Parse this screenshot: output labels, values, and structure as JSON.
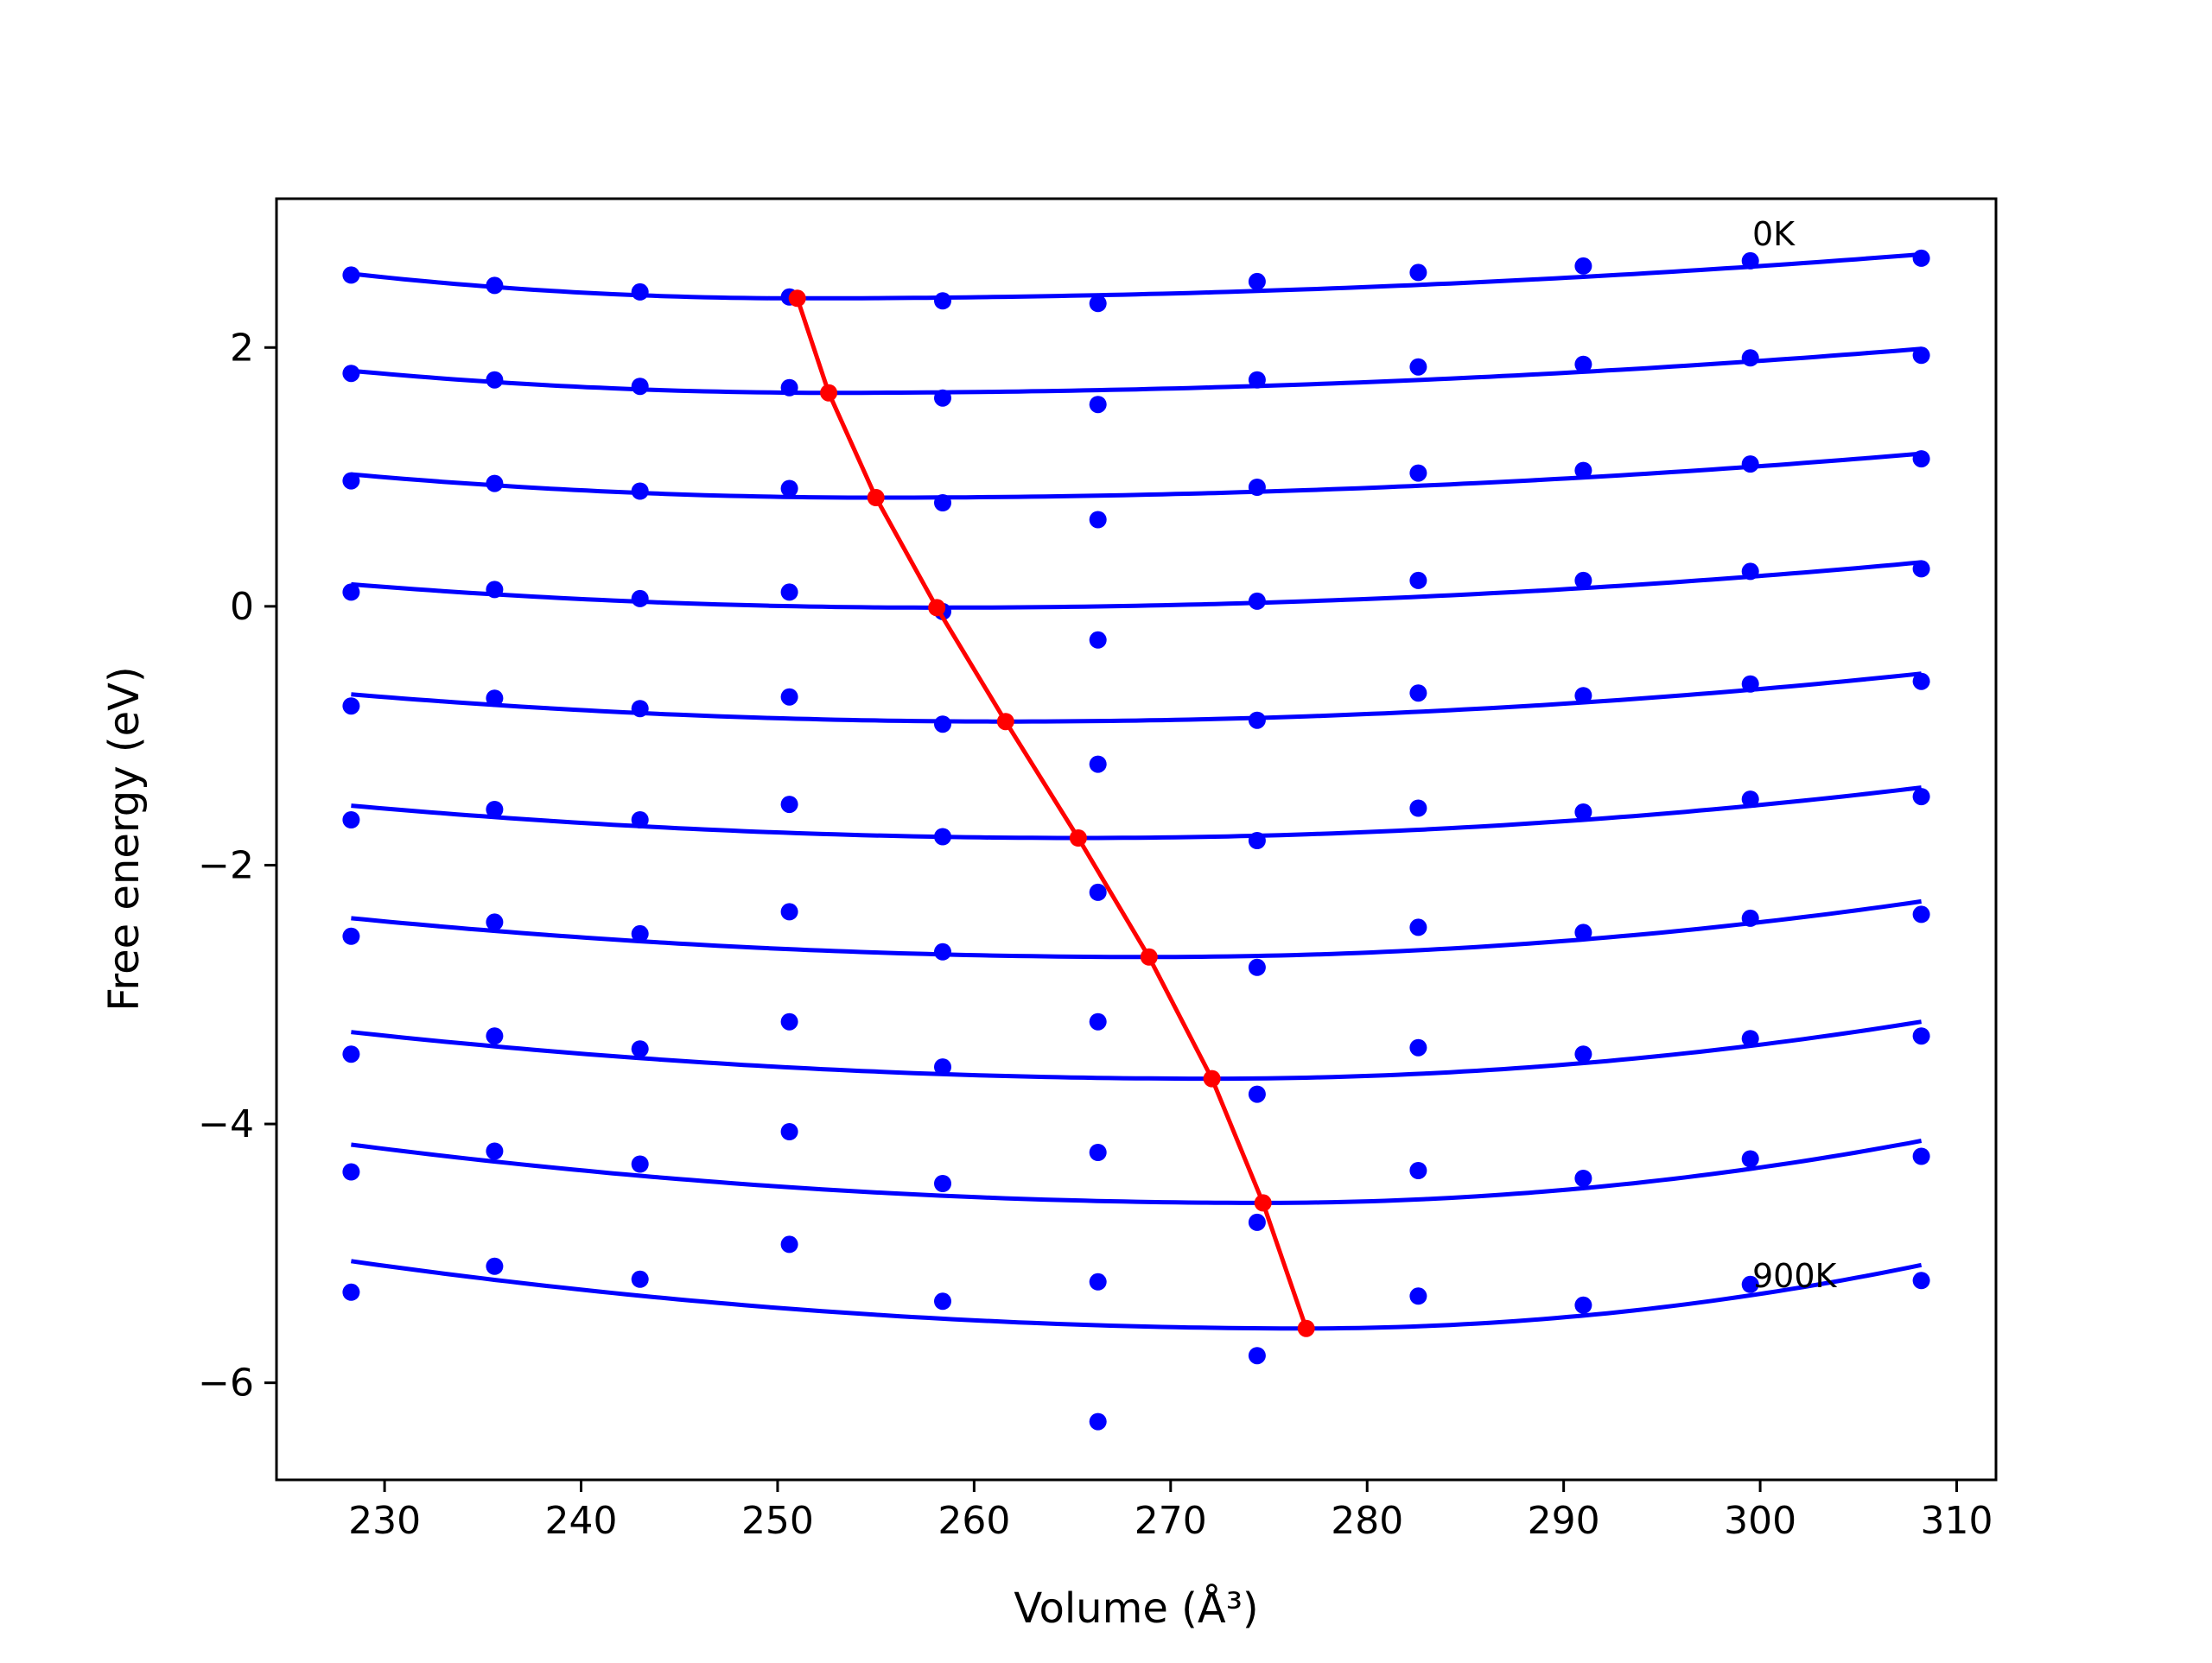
{
  "chart_data": {
    "type": "scatter",
    "xlabel": "Volume (Å³)",
    "ylabel": "Free energy (eV)",
    "xlim": [
      224.5,
      312
    ],
    "ylim": [
      -6.75,
      3.15
    ],
    "xticks": [
      230,
      240,
      250,
      260,
      270,
      280,
      290,
      300,
      310
    ],
    "yticks": [
      -6,
      -4,
      -2,
      0,
      2
    ],
    "ytick_labels": [
      "−6",
      "−4",
      "−2",
      "0",
      "2"
    ],
    "grid": false,
    "colors": {
      "points": "#0000ff",
      "fits": "#0000ff",
      "minima": "#ff0000",
      "axes": "#000000"
    },
    "x": [
      228.3,
      235.6,
      243.0,
      250.6,
      258.4,
      266.3,
      274.4,
      282.6,
      291.0,
      299.5,
      308.2
    ],
    "series": [
      {
        "values": [
          2.56,
          2.48,
          2.43,
          2.39,
          2.36,
          2.34,
          2.51,
          2.58,
          2.63,
          2.67,
          2.69
        ]
      },
      {
        "values": [
          1.8,
          1.75,
          1.7,
          1.69,
          1.61,
          1.56,
          1.75,
          1.85,
          1.87,
          1.92,
          1.94
        ]
      },
      {
        "values": [
          0.97,
          0.95,
          0.89,
          0.91,
          0.8,
          0.67,
          0.92,
          1.03,
          1.05,
          1.1,
          1.14
        ]
      },
      {
        "values": [
          0.11,
          0.13,
          0.06,
          0.11,
          -0.04,
          -0.26,
          0.04,
          0.2,
          0.2,
          0.27,
          0.29
        ]
      },
      {
        "values": [
          -0.77,
          -0.71,
          -0.79,
          -0.7,
          -0.91,
          -1.22,
          -0.88,
          -0.67,
          -0.69,
          -0.6,
          -0.58
        ]
      },
      {
        "values": [
          -1.65,
          -1.57,
          -1.65,
          -1.53,
          -1.78,
          -2.21,
          -1.81,
          -1.56,
          -1.59,
          -1.49,
          -1.47
        ]
      },
      {
        "values": [
          -2.55,
          -2.44,
          -2.53,
          -2.36,
          -2.67,
          -3.21,
          -2.79,
          -2.48,
          -2.52,
          -2.41,
          -2.38
        ]
      },
      {
        "values": [
          -3.46,
          -3.32,
          -3.42,
          -3.21,
          -3.56,
          -4.22,
          -3.77,
          -3.41,
          -3.46,
          -3.34,
          -3.32
        ]
      },
      {
        "values": [
          -4.37,
          -4.21,
          -4.31,
          -4.06,
          -4.46,
          -5.22,
          -4.76,
          -4.36,
          -4.42,
          -4.27,
          -4.25
        ]
      },
      {
        "values": [
          -5.3,
          -5.1,
          -5.2,
          -4.93,
          -5.37,
          -6.3,
          -5.79,
          -5.33,
          -5.4,
          -5.24,
          -5.21
        ]
      }
    ],
    "fits": [
      {
        "minimum": [
          251.0,
          2.38
        ],
        "ends": [
          2.57,
          2.72
        ]
      },
      {
        "minimum": [
          252.6,
          1.65
        ],
        "ends": [
          1.82,
          1.99
        ]
      },
      {
        "minimum": [
          255.0,
          0.84
        ],
        "ends": [
          1.02,
          1.18
        ]
      },
      {
        "minimum": [
          258.1,
          -0.01
        ],
        "ends": [
          0.17,
          0.34
        ]
      },
      {
        "minimum": [
          261.6,
          -0.89
        ],
        "ends": [
          -0.68,
          -0.52
        ]
      },
      {
        "minimum": [
          265.3,
          -1.79
        ],
        "ends": [
          -1.54,
          -1.4
        ]
      },
      {
        "minimum": [
          268.9,
          -2.71
        ],
        "ends": [
          -2.41,
          -2.28
        ]
      },
      {
        "minimum": [
          272.1,
          -3.65
        ],
        "ends": [
          -3.29,
          -3.21
        ]
      },
      {
        "minimum": [
          274.7,
          -4.61
        ],
        "ends": [
          -4.16,
          -4.13
        ]
      },
      {
        "minimum": [
          276.9,
          -5.58
        ],
        "ends": [
          -5.06,
          -5.09
        ]
      }
    ],
    "minima_path": {
      "x": [
        251.0,
        252.6,
        255.0,
        258.1,
        261.6,
        265.3,
        268.9,
        272.1,
        274.7,
        276.9
      ],
      "y": [
        2.38,
        1.65,
        0.84,
        -0.01,
        -0.89,
        -1.79,
        -2.71,
        -3.65,
        -4.61,
        -5.58
      ]
    },
    "annotations": [
      {
        "text": "0K",
        "x": 299.6,
        "y": 2.79
      },
      {
        "text": "900K",
        "x": 299.6,
        "y": -5.26
      }
    ]
  }
}
